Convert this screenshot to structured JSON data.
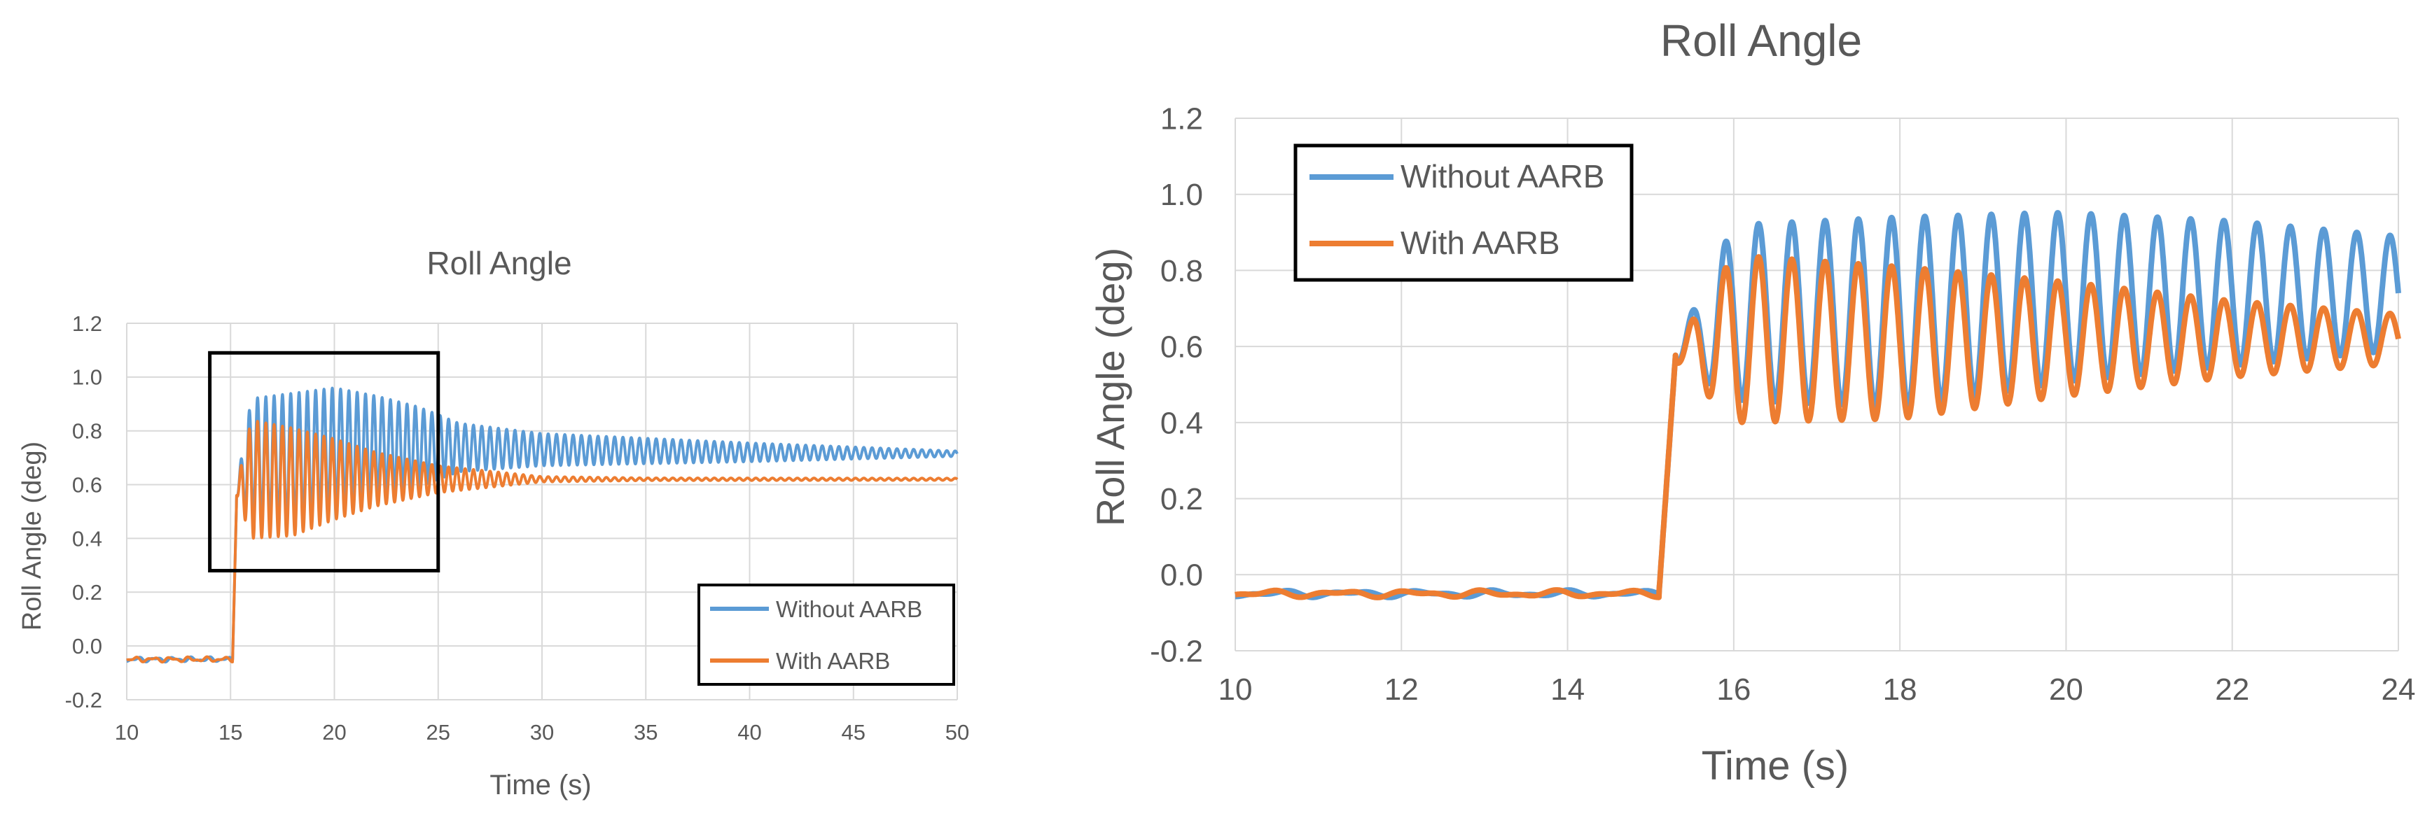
{
  "colors": {
    "without": "#5b9bd5",
    "with": "#ed7d31",
    "grid": "#d9d9d9",
    "text": "#595959",
    "box": "#000000"
  },
  "chart_data": [
    {
      "type": "line",
      "title": "Roll Angle",
      "xlabel": "Time (s)",
      "ylabel": "Roll Angle (deg)",
      "xlim": [
        10,
        50
      ],
      "ylim": [
        -0.2,
        1.2
      ],
      "x_ticks": [
        "10",
        "15",
        "20",
        "25",
        "30",
        "35",
        "40",
        "45",
        "50"
      ],
      "y_ticks": [
        "-0.2",
        "0.0",
        "0.2",
        "0.4",
        "0.6",
        "0.8",
        "1.0",
        "1.2"
      ],
      "grid": true,
      "legend": {
        "position": "bottom-right",
        "entries": [
          "Without AARB",
          "With AARB"
        ]
      },
      "zoom_box": {
        "x_range": [
          14,
          25
        ],
        "y_range": [
          0.28,
          1.09
        ]
      },
      "series": [
        {
          "name": "Without AARB",
          "baseline": -0.05,
          "step_time": 15.1,
          "oscillation": {
            "period": 0.4,
            "mean": [
              [
                15.3,
                0.58
              ],
              [
                16,
                0.69
              ],
              [
                18,
                0.69
              ],
              [
                20,
                0.73
              ],
              [
                22,
                0.74
              ],
              [
                25,
                0.74
              ],
              [
                30,
                0.73
              ],
              [
                40,
                0.72
              ],
              [
                50,
                0.715
              ]
            ],
            "amplitude": [
              [
                15.3,
                0.02
              ],
              [
                16,
                0.23
              ],
              [
                18,
                0.25
              ],
              [
                20,
                0.23
              ],
              [
                22,
                0.19
              ],
              [
                24,
                0.15
              ],
              [
                26,
                0.09
              ],
              [
                30,
                0.06
              ],
              [
                40,
                0.035
              ],
              [
                50,
                0.01
              ]
            ]
          }
        },
        {
          "name": "With AARB",
          "baseline": -0.05,
          "step_time": 15.1,
          "oscillation": {
            "period": 0.4,
            "mean": [
              [
                15.3,
                0.58
              ],
              [
                16,
                0.62
              ],
              [
                18,
                0.61
              ],
              [
                20,
                0.62
              ],
              [
                24,
                0.62
              ],
              [
                30,
                0.62
              ],
              [
                50,
                0.62
              ]
            ],
            "amplitude": [
              [
                15.3,
                0.02
              ],
              [
                16,
                0.22
              ],
              [
                18,
                0.2
              ],
              [
                20,
                0.15
              ],
              [
                22,
                0.1
              ],
              [
                25,
                0.05
              ],
              [
                30,
                0.01
              ],
              [
                35,
                0.005
              ],
              [
                50,
                0.004
              ]
            ]
          }
        }
      ]
    },
    {
      "type": "line",
      "title": "Roll Angle",
      "xlabel": "Time (s)",
      "ylabel": "Roll Angle (deg)",
      "xlim": [
        10,
        24
      ],
      "ylim": [
        -0.2,
        1.2
      ],
      "x_ticks": [
        "10",
        "12",
        "14",
        "16",
        "18",
        "20",
        "22",
        "24"
      ],
      "y_ticks": [
        "-0.2",
        "0.0",
        "0.2",
        "0.4",
        "0.6",
        "0.8",
        "1.0",
        "1.2"
      ],
      "grid": true,
      "legend": {
        "position": "top-left",
        "entries": [
          "Without AARB",
          "With AARB"
        ]
      },
      "series": [
        {
          "name": "Without AARB",
          "baseline": -0.05,
          "step_time": 15.1,
          "oscillation": {
            "period": 0.4,
            "mean": [
              [
                15.3,
                0.58
              ],
              [
                16,
                0.69
              ],
              [
                18,
                0.69
              ],
              [
                20,
                0.73
              ],
              [
                22,
                0.74
              ],
              [
                24,
                0.74
              ]
            ],
            "amplitude": [
              [
                15.3,
                0.02
              ],
              [
                16,
                0.23
              ],
              [
                18,
                0.25
              ],
              [
                19.5,
                0.23
              ],
              [
                22,
                0.19
              ],
              [
                24,
                0.15
              ]
            ]
          }
        },
        {
          "name": "With AARB",
          "baseline": -0.05,
          "step_time": 15.1,
          "oscillation": {
            "period": 0.4,
            "mean": [
              [
                15.3,
                0.58
              ],
              [
                16,
                0.62
              ],
              [
                18,
                0.61
              ],
              [
                20,
                0.62
              ],
              [
                24,
                0.62
              ]
            ],
            "amplitude": [
              [
                15.3,
                0.02
              ],
              [
                16,
                0.22
              ],
              [
                18,
                0.2
              ],
              [
                20,
                0.15
              ],
              [
                22,
                0.1
              ],
              [
                24,
                0.065
              ]
            ]
          }
        }
      ]
    }
  ]
}
